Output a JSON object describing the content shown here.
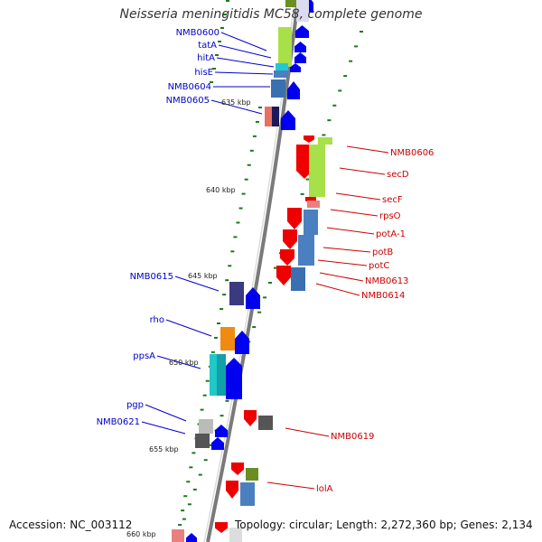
{
  "title": "Neisseria meningitidis MC58, complete genome",
  "footer": {
    "accession": "Accession: NC_003112",
    "summary": "Topology: circular; Length: 2,272,360 bp; Genes: 2,134"
  },
  "colors": {
    "backbone": "#7a7a7a",
    "left_label": "#0000cc",
    "right_label": "#cc0000",
    "tick": "#1a7a1a",
    "forward": "#0000ee",
    "reverse": "#ee0000"
  },
  "scale_labels": [
    "635 kbp",
    "640 kbp",
    "645 kbp",
    "650 kbp",
    "655 kbp",
    "660 kbp"
  ],
  "left_genes": [
    {
      "name": "NMB0600"
    },
    {
      "name": "tatA"
    },
    {
      "name": "hitA"
    },
    {
      "name": "hisE"
    },
    {
      "name": "NMB0604"
    },
    {
      "name": "NMB0605"
    },
    {
      "name": "NMB0615"
    },
    {
      "name": "rho"
    },
    {
      "name": "ppsA"
    },
    {
      "name": "pgp"
    },
    {
      "name": "NMB0621"
    }
  ],
  "right_genes": [
    {
      "name": "NMB0606"
    },
    {
      "name": "secD"
    },
    {
      "name": "secF"
    },
    {
      "name": "rpsO"
    },
    {
      "name": "potA-1"
    },
    {
      "name": "potB"
    },
    {
      "name": "potC"
    },
    {
      "name": "NMB0613"
    },
    {
      "name": "NMB0614"
    },
    {
      "name": "NMB0619"
    },
    {
      "name": "lolA"
    }
  ]
}
